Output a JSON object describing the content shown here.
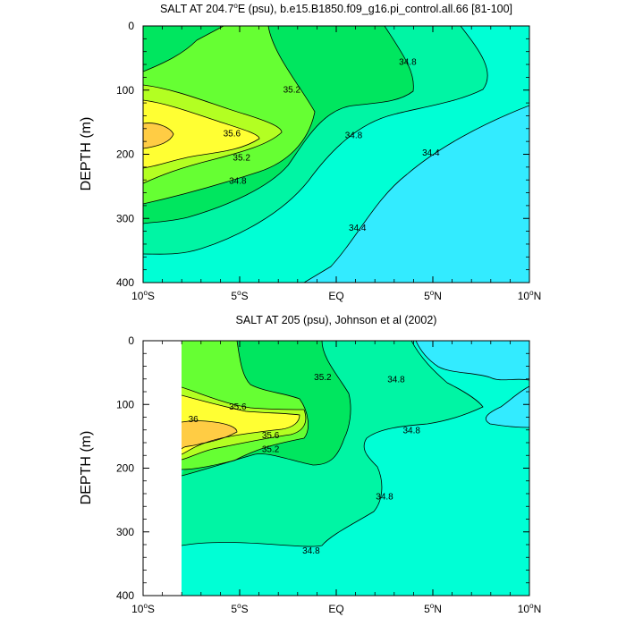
{
  "colors": {
    "s_lt_34_4": "#33ebff",
    "s_34_4_34_8": "#00ffd5",
    "s_34_8_35_2": "#00f5a4",
    "s_35_2_35_4": "#00e65f",
    "s_35_4_35_6": "#66ff33",
    "s_35_6_35_8": "#b3ff22",
    "s_35_8_36": "#ffff33",
    "s_gt_36": "#ffcc44",
    "missing": "#ffffff",
    "contour": "#000000"
  },
  "chart_data": [
    {
      "type": "contour",
      "title": "SALT AT 204.7°E (psu), b.e15.B1850.f09_g16.pi_control.all.66 [81-100]",
      "title_main": "SALT AT 204.7",
      "title_deg": "o",
      "title_rest": "E (psu), b.e15.B1850.f09_g16.pi_control.all.66 [81-100]",
      "ylabel": "DEPTH (m)",
      "xlim": [
        -10,
        10
      ],
      "ylim": [
        400,
        0
      ],
      "y_ticks": [
        "0",
        "100",
        "200",
        "300",
        "400"
      ],
      "x_ticks": [
        {
          "num": "10",
          "deg": "o",
          "hemi": "S"
        },
        {
          "num": "5",
          "deg": "o",
          "hemi": "S"
        },
        {
          "num": "EQ",
          "deg": "",
          "hemi": ""
        },
        {
          "num": "5",
          "deg": "o",
          "hemi": "N"
        },
        {
          "num": "10",
          "deg": "o",
          "hemi": "N"
        }
      ],
      "contour_labels": [
        {
          "text": "35.6",
          "lat": -5.4,
          "depth": 167
        },
        {
          "text": "35.2",
          "lat": -4.9,
          "depth": 205
        },
        {
          "text": "34.8",
          "lat": -5.1,
          "depth": 241
        },
        {
          "text": "35.2",
          "lat": -2.3,
          "depth": 99
        },
        {
          "text": "34.8",
          "lat": 0.9,
          "depth": 170
        },
        {
          "text": "34.8",
          "lat": 3.7,
          "depth": 56
        },
        {
          "text": "34.4",
          "lat": 4.9,
          "depth": 197
        },
        {
          "text": "34.4",
          "lat": 1.1,
          "depth": 314
        }
      ]
    },
    {
      "type": "contour",
      "title": "SALT AT 205 (psu), Johnson et al (2002)",
      "title_main": "SALT AT 205 (psu), Johnson et al (2002)",
      "title_deg": "",
      "title_rest": "",
      "ylabel": "DEPTH (m)",
      "xlim": [
        -10,
        10
      ],
      "ylim": [
        400,
        0
      ],
      "y_ticks": [
        "0",
        "100",
        "200",
        "300",
        "400"
      ],
      "x_ticks": [
        {
          "num": "10",
          "deg": "o",
          "hemi": "S"
        },
        {
          "num": "5",
          "deg": "o",
          "hemi": "S"
        },
        {
          "num": "EQ",
          "deg": "",
          "hemi": ""
        },
        {
          "num": "5",
          "deg": "o",
          "hemi": "N"
        },
        {
          "num": "10",
          "deg": "o",
          "hemi": "N"
        }
      ],
      "contour_labels": [
        {
          "text": "35.6",
          "lat": -5.1,
          "depth": 103
        },
        {
          "text": "36",
          "lat": -7.4,
          "depth": 123
        },
        {
          "text": "35.6",
          "lat": -3.4,
          "depth": 148
        },
        {
          "text": "35.2",
          "lat": -3.4,
          "depth": 170
        },
        {
          "text": "35.2",
          "lat": -0.7,
          "depth": 57
        },
        {
          "text": "34.8",
          "lat": 3.1,
          "depth": 60
        },
        {
          "text": "34.8",
          "lat": 3.9,
          "depth": 140
        },
        {
          "text": "34.8",
          "lat": 2.5,
          "depth": 244
        },
        {
          "text": "34.8",
          "lat": -1.3,
          "depth": 329
        }
      ]
    }
  ]
}
